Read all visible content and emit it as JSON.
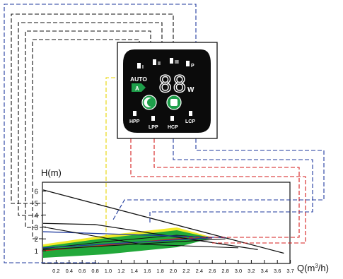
{
  "chart": {
    "type": "line",
    "ylabel": "H(m)",
    "xlabel_prefix": "Q(m",
    "xlabel_sup": "3",
    "xlabel_suffix": "/h)",
    "x_ticks": [
      "0.2",
      "0.4",
      "0.6",
      "0.8",
      "1.0",
      "1.2",
      "1.4",
      "1.6",
      "1.8",
      "2.0",
      "2.2",
      "2.4",
      "2.6",
      "2.8",
      "3.0",
      "3.2",
      "3.4",
      "3.6",
      "3.7"
    ],
    "y_ticks": [
      "1",
      "2",
      "3",
      "4",
      "5",
      "6"
    ]
  },
  "panel": {
    "modes": [
      "I",
      "II",
      "III",
      "P"
    ],
    "auto_label": "AUTO",
    "auto_badge": "A",
    "display_digits": "88",
    "unit": "W",
    "bottom_labels": [
      "HPP",
      "LPP",
      "HCP",
      "LCP"
    ]
  },
  "colors": {
    "panel_bg": "#0b0b0b",
    "button_green": "#1e9e4a",
    "band_green": "#22a83a",
    "band_yellow": "#f2ea2a",
    "wire_blue": "#1f3a9e",
    "wire_red": "#d61c1c",
    "wire_black": "#111111",
    "wire_yellow": "#e8d400"
  },
  "chart_data": {
    "type": "line",
    "xlabel": "Q(m3/h)",
    "ylabel": "H(m)",
    "xlim": [
      0,
      3.8
    ],
    "ylim": [
      0,
      6.8
    ],
    "series": [
      {
        "x": [
          0,
          3.7
        ],
        "y": [
          6.1,
          0.8
        ]
      },
      {
        "x": [
          0,
          0.8,
          3.3
        ],
        "y": [
          3.3,
          3.2,
          1.1
        ]
      },
      {
        "x": [
          0,
          2.8
        ],
        "y": [
          2.6,
          2.1
        ]
      },
      {
        "x": [
          0,
          2.6
        ],
        "y": [
          1.25,
          2.1
        ]
      },
      {
        "x": [
          0,
          1.5,
          3.0
        ],
        "y": [
          3.0,
          1.55,
          1.25
        ]
      },
      {
        "x": [
          0,
          2.8
        ],
        "y": [
          1.1,
          2.0
        ]
      }
    ]
  }
}
